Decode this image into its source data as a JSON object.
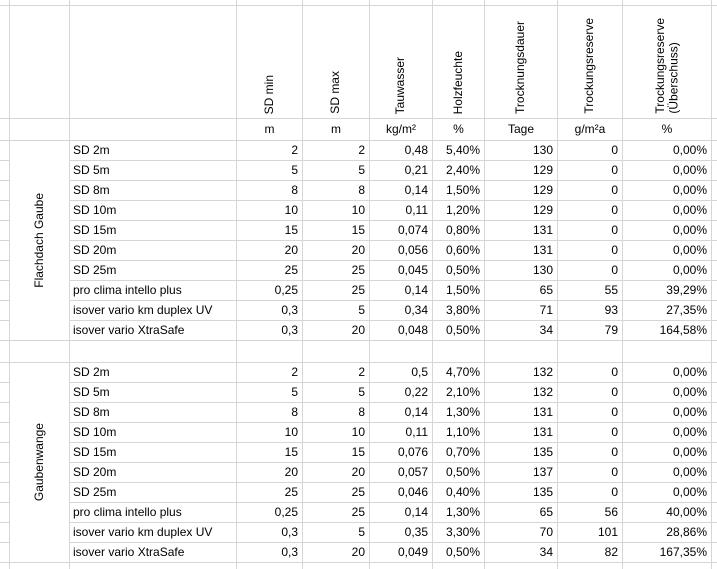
{
  "colors": {
    "gridline": "#d6d6d6",
    "background": "#ffffff",
    "text": "#000000"
  },
  "table": {
    "columns": [
      {
        "header": "SD min",
        "unit": "m"
      },
      {
        "header": "SD max",
        "unit": "m"
      },
      {
        "header": "Tauwasser",
        "unit": "kg/m²"
      },
      {
        "header": "Holzfeuchte",
        "unit": "%"
      },
      {
        "header": "Trocknungsdauer",
        "unit": "Tage"
      },
      {
        "header": "Trockungsreserve",
        "unit": "g/m²a"
      },
      {
        "header": "Trockungsreserve\n(Überschuss)",
        "unit": "%"
      }
    ],
    "groups": [
      {
        "label": "Flachdach Gaube",
        "rows": [
          {
            "name": "SD 2m",
            "sd_min": "2",
            "sd_max": "2",
            "tauwasser": "0,48",
            "holzfeuchte": "5,40%",
            "trocknungsdauer": "130",
            "trockungsreserve": "0",
            "ueberschuss": "0,00%"
          },
          {
            "name": "SD 5m",
            "sd_min": "5",
            "sd_max": "5",
            "tauwasser": "0,21",
            "holzfeuchte": "2,40%",
            "trocknungsdauer": "129",
            "trockungsreserve": "0",
            "ueberschuss": "0,00%"
          },
          {
            "name": "SD 8m",
            "sd_min": "8",
            "sd_max": "8",
            "tauwasser": "0,14",
            "holzfeuchte": "1,50%",
            "trocknungsdauer": "129",
            "trockungsreserve": "0",
            "ueberschuss": "0,00%"
          },
          {
            "name": "SD 10m",
            "sd_min": "10",
            "sd_max": "10",
            "tauwasser": "0,11",
            "holzfeuchte": "1,20%",
            "trocknungsdauer": "129",
            "trockungsreserve": "0",
            "ueberschuss": "0,00%"
          },
          {
            "name": "SD 15m",
            "sd_min": "15",
            "sd_max": "15",
            "tauwasser": "0,074",
            "holzfeuchte": "0,80%",
            "trocknungsdauer": "131",
            "trockungsreserve": "0",
            "ueberschuss": "0,00%"
          },
          {
            "name": "SD 20m",
            "sd_min": "20",
            "sd_max": "20",
            "tauwasser": "0,056",
            "holzfeuchte": "0,60%",
            "trocknungsdauer": "131",
            "trockungsreserve": "0",
            "ueberschuss": "0,00%"
          },
          {
            "name": "SD 25m",
            "sd_min": "25",
            "sd_max": "25",
            "tauwasser": "0,045",
            "holzfeuchte": "0,50%",
            "trocknungsdauer": "130",
            "trockungsreserve": "0",
            "ueberschuss": "0,00%"
          },
          {
            "name": "pro clima intello plus",
            "sd_min": "0,25",
            "sd_max": "25",
            "tauwasser": "0,14",
            "holzfeuchte": "1,50%",
            "trocknungsdauer": "65",
            "trockungsreserve": "55",
            "ueberschuss": "39,29%"
          },
          {
            "name": "isover vario km duplex UV",
            "sd_min": "0,3",
            "sd_max": "5",
            "tauwasser": "0,34",
            "holzfeuchte": "3,80%",
            "trocknungsdauer": "71",
            "trockungsreserve": "93",
            "ueberschuss": "27,35%"
          },
          {
            "name": "isover vario XtraSafe",
            "sd_min": "0,3",
            "sd_max": "20",
            "tauwasser": "0,048",
            "holzfeuchte": "0,50%",
            "trocknungsdauer": "34",
            "trockungsreserve": "79",
            "ueberschuss": "164,58%"
          }
        ]
      },
      {
        "label": "Gaubenwange",
        "rows": [
          {
            "name": "SD 2m",
            "sd_min": "2",
            "sd_max": "2",
            "tauwasser": "0,5",
            "holzfeuchte": "4,70%",
            "trocknungsdauer": "132",
            "trockungsreserve": "0",
            "ueberschuss": "0,00%"
          },
          {
            "name": "SD 5m",
            "sd_min": "5",
            "sd_max": "5",
            "tauwasser": "0,22",
            "holzfeuchte": "2,10%",
            "trocknungsdauer": "132",
            "trockungsreserve": "0",
            "ueberschuss": "0,00%"
          },
          {
            "name": "SD 8m",
            "sd_min": "8",
            "sd_max": "8",
            "tauwasser": "0,14",
            "holzfeuchte": "1,30%",
            "trocknungsdauer": "131",
            "trockungsreserve": "0",
            "ueberschuss": "0,00%"
          },
          {
            "name": "SD 10m",
            "sd_min": "10",
            "sd_max": "10",
            "tauwasser": "0,11",
            "holzfeuchte": "1,10%",
            "trocknungsdauer": "131",
            "trockungsreserve": "0",
            "ueberschuss": "0,00%"
          },
          {
            "name": "SD 15m",
            "sd_min": "15",
            "sd_max": "15",
            "tauwasser": "0,076",
            "holzfeuchte": "0,70%",
            "trocknungsdauer": "135",
            "trockungsreserve": "0",
            "ueberschuss": "0,00%"
          },
          {
            "name": "SD 20m",
            "sd_min": "20",
            "sd_max": "20",
            "tauwasser": "0,057",
            "holzfeuchte": "0,50%",
            "trocknungsdauer": "137",
            "trockungsreserve": "0",
            "ueberschuss": "0,00%"
          },
          {
            "name": "SD 25m",
            "sd_min": "25",
            "sd_max": "25",
            "tauwasser": "0,046",
            "holzfeuchte": "0,40%",
            "trocknungsdauer": "135",
            "trockungsreserve": "0",
            "ueberschuss": "0,00%"
          },
          {
            "name": "pro clima intello plus",
            "sd_min": "0,25",
            "sd_max": "25",
            "tauwasser": "0,14",
            "holzfeuchte": "1,30%",
            "trocknungsdauer": "65",
            "trockungsreserve": "56",
            "ueberschuss": "40,00%"
          },
          {
            "name": "isover vario km duplex UV",
            "sd_min": "0,3",
            "sd_max": "5",
            "tauwasser": "0,35",
            "holzfeuchte": "3,30%",
            "trocknungsdauer": "70",
            "trockungsreserve": "101",
            "ueberschuss": "28,86%"
          },
          {
            "name": "isover vario XtraSafe",
            "sd_min": "0,3",
            "sd_max": "20",
            "tauwasser": "0,049",
            "holzfeuchte": "0,50%",
            "trocknungsdauer": "34",
            "trockungsreserve": "82",
            "ueberschuss": "167,35%"
          }
        ]
      }
    ]
  }
}
